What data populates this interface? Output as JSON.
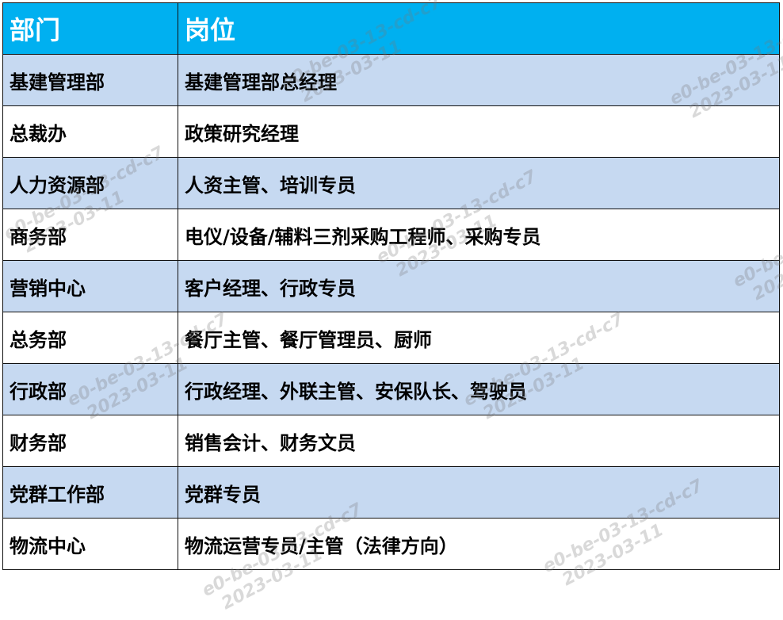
{
  "header": {
    "col1": "部门",
    "col2": "岗位"
  },
  "rows": [
    {
      "dept": "基建管理部",
      "positions": "基建管理部总经理"
    },
    {
      "dept": "总裁办",
      "positions": "政策研究经理"
    },
    {
      "dept": "人力资源部",
      "positions": "人资主管、培训专员"
    },
    {
      "dept": "商务部",
      "positions": "电仪/设备/辅料三剂采购工程师、采购专员"
    },
    {
      "dept": "营销中心",
      "positions": "客户经理、行政专员"
    },
    {
      "dept": "总务部",
      "positions": "餐厅主管、餐厅管理员、厨师"
    },
    {
      "dept": "行政部",
      "positions": "行政经理、外联主管、安保队长、驾驶员"
    },
    {
      "dept": "财务部",
      "positions": "销售会计、财务文员"
    },
    {
      "dept": "党群工作部",
      "positions": "党群专员"
    },
    {
      "dept": "物流中心",
      "positions": "物流运营专员/主管（法律方向）"
    }
  ],
  "watermark": {
    "line1": "e0-be-03-13-cd-c7",
    "line2": "2023-03-11"
  },
  "colors": {
    "header_bg": "#00B0F0",
    "alt_row_bg": "#C6D9F1"
  }
}
